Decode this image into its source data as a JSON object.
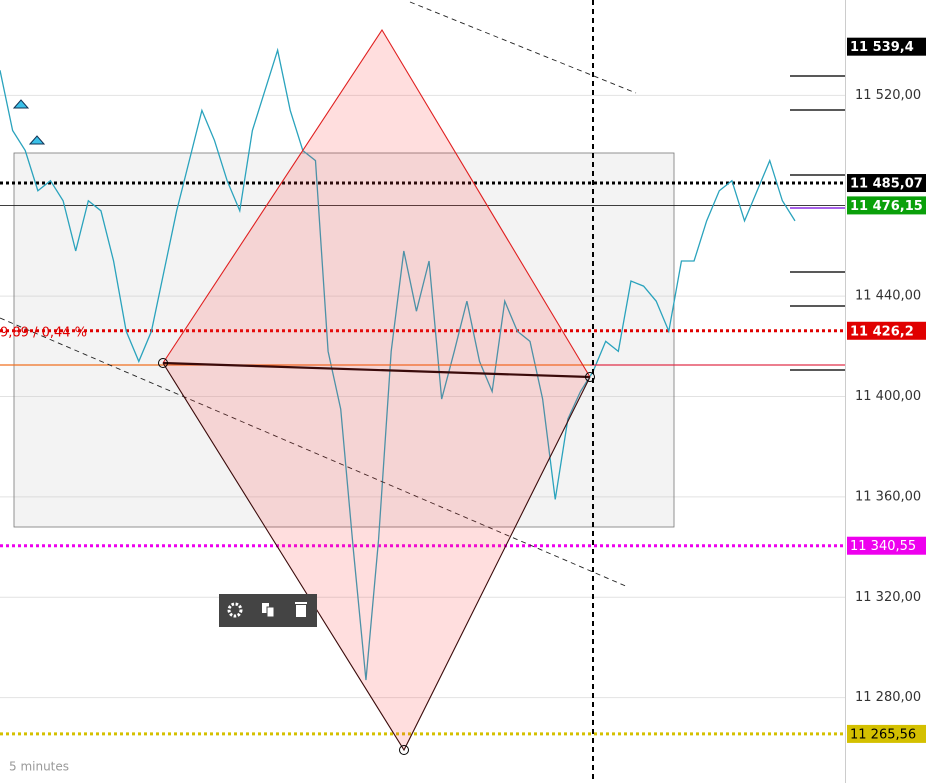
{
  "chart_data": {
    "type": "line",
    "timeframe": "5 minutes",
    "annotation": "9,89 / 0,44 %",
    "color": "#2aa3bd",
    "values": [
      11530,
      11506,
      11498,
      11482,
      11486,
      11478,
      11458,
      11478,
      11474,
      11454,
      11426,
      11414,
      11426,
      11450,
      11474,
      11494,
      11514,
      11502,
      11486,
      11474,
      11506,
      11522,
      11538,
      11514,
      11498,
      11494,
      11418,
      11395,
      11339,
      11287,
      11343,
      11418,
      11458,
      11434,
      11454,
      11399,
      11418,
      11438,
      11414,
      11402,
      11438,
      11426,
      11422,
      11399,
      11359,
      11391,
      11402,
      11410,
      11422,
      11418,
      11446,
      11444,
      11438,
      11426,
      11454,
      11454,
      11470,
      11482,
      11486,
      11470,
      11482,
      11494,
      11478,
      11470
    ],
    "ylim": [
      11246,
      11558
    ],
    "yticks": [
      {
        "value": 11280,
        "label": "11 280,00"
      },
      {
        "value": 11320,
        "label": "11 320,00"
      },
      {
        "value": 11360,
        "label": "11 360,00"
      },
      {
        "value": 11400,
        "label": "11 400,00"
      },
      {
        "value": 11440,
        "label": "11 440,00"
      },
      {
        "value": 11520,
        "label": "11 520,00"
      }
    ],
    "grid": true,
    "levels": [
      {
        "value": 11539.4,
        "label": "11 539,4",
        "color": "#000000",
        "line": "none"
      },
      {
        "value": 11485.07,
        "label": "11 485,07",
        "color": "#000000",
        "line": "dotted"
      },
      {
        "value": 11476.15,
        "label": "11 476,15",
        "color": "#0aa00a",
        "line": "solid"
      },
      {
        "value": 11426.2,
        "label": "11 426,2",
        "color": "#e00000",
        "line": "dotted"
      },
      {
        "value": 11340.55,
        "label": "11 340,55",
        "color": "#ee00ee",
        "line": "dotted"
      },
      {
        "value": 11265.56,
        "label": "11 265,56",
        "color": "#d4c000",
        "line": "dotted"
      }
    ]
  }
}
